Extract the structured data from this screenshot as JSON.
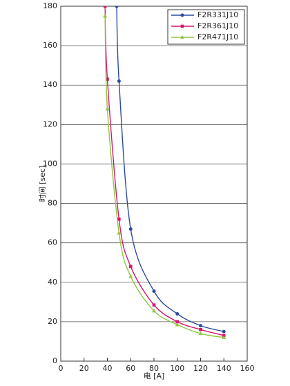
{
  "chart_data": {
    "type": "line",
    "x_label": "电 [A]",
    "y_label": "时间 [sec]",
    "xlim": [
      0,
      160
    ],
    "xticks": [
      0,
      20,
      40,
      60,
      80,
      100,
      120,
      140,
      160
    ],
    "ylim": [
      0,
      180
    ],
    "yticks": [
      0,
      20,
      40,
      60,
      80,
      100,
      120,
      140,
      160,
      180
    ],
    "grid": true,
    "legend": "top-right",
    "series": [
      {
        "name": "F2R331J10",
        "color": "#2a4a9e",
        "marker": "circle",
        "x": [
          48,
          50,
          60,
          80,
          100,
          120,
          140
        ],
        "values": [
          180,
          142,
          67,
          35.5,
          24,
          18,
          15
        ]
      },
      {
        "name": "F2R361J10",
        "color": "#d4176b",
        "marker": "square",
        "x": [
          38,
          40,
          50,
          60,
          80,
          100,
          120,
          140
        ],
        "values": [
          180,
          143,
          72,
          48,
          28.5,
          20,
          16,
          13
        ]
      },
      {
        "name": "F2R471J10",
        "color": "#8dc63f",
        "marker": "triangle",
        "x": [
          38,
          40,
          50,
          60,
          80,
          100,
          120,
          140
        ],
        "values": [
          175,
          128,
          65,
          43,
          25.5,
          18.5,
          14,
          12
        ]
      }
    ]
  }
}
